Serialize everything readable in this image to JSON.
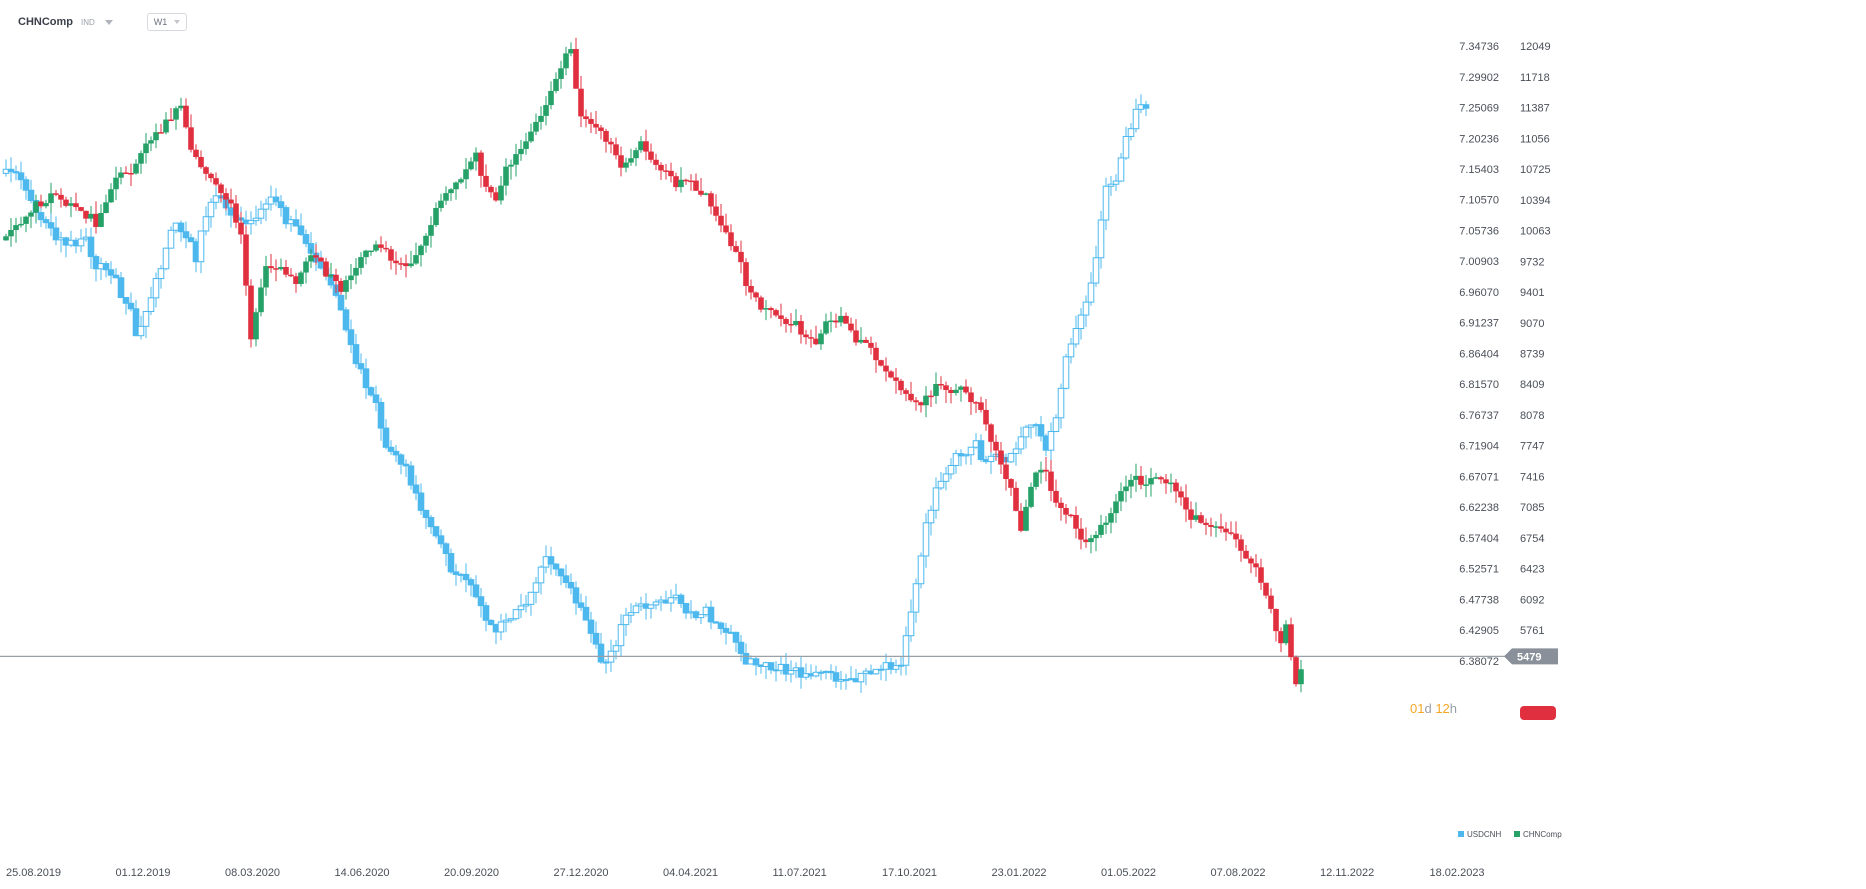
{
  "header": {
    "symbol": "CHNComp",
    "instrument_type": "IND",
    "timeframe": "W1"
  },
  "countdown": {
    "days": "01",
    "days_unit": "d",
    "hours": "12",
    "hours_unit": "h"
  },
  "colors": {
    "up": "#26a269",
    "down": "#e0303f",
    "compare_line": "#4cb8ee",
    "price_line": "#9aa0a8",
    "price_badge": "#8a9099",
    "countdown_text": "#f5a623",
    "countdown_badge": "#e0303f"
  },
  "chart_data": {
    "type": "candlestick",
    "title": "",
    "price_marker": {
      "value": 5479
    },
    "primary_axis": {
      "ticks": [
        12049,
        11718,
        11387,
        11056,
        10725,
        10394,
        10063,
        9732,
        9401,
        9070,
        8739,
        8409,
        8078,
        7747,
        7416,
        7085,
        6754,
        6423,
        6092,
        5761,
        5479
      ]
    },
    "compare_axis": {
      "ticks": [
        "7.34736",
        "7.29902",
        "7.25069",
        "7.20236",
        "7.15403",
        "7.10570",
        "7.05736",
        "7.00903",
        "6.96070",
        "6.91237",
        "6.86404",
        "6.81570",
        "6.76737",
        "6.71904",
        "6.67071",
        "6.62238",
        "6.57404",
        "6.52571",
        "6.47738",
        "6.42905",
        "6.38072"
      ]
    },
    "x_ticks": [
      "25.08.2019",
      "01.12.2019",
      "08.03.2020",
      "14.06.2020",
      "20.09.2020",
      "27.12.2020",
      "04.04.2021",
      "11.07.2021",
      "17.10.2021",
      "23.01.2022",
      "01.05.2022",
      "07.08.2022",
      "12.11.2022",
      "18.02.2023"
    ],
    "legend": [
      {
        "name": "USDCNH",
        "color": "#4cb8ee"
      },
      {
        "name": "CHNComp",
        "color": "#26a269"
      }
    ],
    "series": [
      {
        "name": "CHNComp",
        "weekly_close_path": [
          [
            0,
            10020
          ],
          [
            6,
            10350
          ],
          [
            10,
            10450
          ],
          [
            14,
            10300
          ],
          [
            18,
            10150
          ],
          [
            22,
            10650
          ],
          [
            26,
            10750
          ],
          [
            28,
            10950
          ],
          [
            31,
            11150
          ],
          [
            34,
            11350
          ],
          [
            35,
            11400
          ],
          [
            37,
            10950
          ],
          [
            39,
            10700
          ],
          [
            42,
            10600
          ],
          [
            45,
            10350
          ],
          [
            47,
            10000
          ],
          [
            49,
            8900
          ],
          [
            52,
            9650
          ],
          [
            55,
            9720
          ],
          [
            58,
            9450
          ],
          [
            61,
            9850
          ],
          [
            64,
            9600
          ],
          [
            67,
            9450
          ],
          [
            70,
            9700
          ],
          [
            74,
            9950
          ],
          [
            78,
            9700
          ],
          [
            82,
            9750
          ],
          [
            86,
            10300
          ],
          [
            90,
            10550
          ],
          [
            94,
            10850
          ],
          [
            96,
            10480
          ],
          [
            98,
            10400
          ],
          [
            100,
            10700
          ],
          [
            103,
            10900
          ],
          [
            106,
            11200
          ],
          [
            108,
            11450
          ],
          [
            110,
            11650
          ],
          [
            112,
            11950
          ],
          [
            113,
            12000
          ],
          [
            115,
            11250
          ],
          [
            117,
            11200
          ],
          [
            120,
            11050
          ],
          [
            123,
            10750
          ],
          [
            127,
            11000
          ],
          [
            130,
            10800
          ],
          [
            134,
            10580
          ],
          [
            137,
            10550
          ],
          [
            139,
            10480
          ],
          [
            141,
            10350
          ],
          [
            143,
            10100
          ],
          [
            146,
            9850
          ],
          [
            149,
            9350
          ],
          [
            152,
            9200
          ],
          [
            155,
            9100
          ],
          [
            158,
            9050
          ],
          [
            160,
            8900
          ],
          [
            162,
            8850
          ],
          [
            164,
            9050
          ],
          [
            167,
            9100
          ],
          [
            170,
            8850
          ],
          [
            172,
            8850
          ],
          [
            174,
            8700
          ],
          [
            177,
            8450
          ],
          [
            180,
            8300
          ],
          [
            183,
            8150
          ],
          [
            186,
            8400
          ],
          [
            189,
            8300
          ],
          [
            192,
            8350
          ],
          [
            195,
            8100
          ],
          [
            198,
            7650
          ],
          [
            201,
            7250
          ],
          [
            203,
            6800
          ],
          [
            206,
            7500
          ],
          [
            208,
            7450
          ],
          [
            210,
            7150
          ],
          [
            213,
            6950
          ],
          [
            216,
            6700
          ],
          [
            219,
            6850
          ],
          [
            221,
            7050
          ],
          [
            223,
            7250
          ],
          [
            225,
            7420
          ],
          [
            228,
            7350
          ],
          [
            231,
            7400
          ],
          [
            234,
            7300
          ],
          [
            237,
            7000
          ],
          [
            240,
            6850
          ],
          [
            243,
            6850
          ],
          [
            246,
            6750
          ],
          [
            249,
            6500
          ],
          [
            252,
            6150
          ],
          [
            254,
            5800
          ],
          [
            255,
            5650
          ],
          [
            256,
            5850
          ],
          [
            258,
            5150
          ],
          [
            259,
            5350
          ]
        ]
      },
      {
        "name": "USDCNH",
        "weekly_close_path": [
          [
            0,
            7.155
          ],
          [
            3,
            7.135
          ],
          [
            5,
            7.105
          ],
          [
            8,
            7.068
          ],
          [
            10,
            7.04
          ],
          [
            13,
            7.035
          ],
          [
            16,
            7.04
          ],
          [
            18,
            7.0
          ],
          [
            20,
            6.995
          ],
          [
            22,
            6.98
          ],
          [
            24,
            6.935
          ],
          [
            25,
            6.935
          ],
          [
            26,
            6.885
          ],
          [
            28,
            6.935
          ],
          [
            31,
            7.0
          ],
          [
            34,
            7.075
          ],
          [
            36,
            7.05
          ],
          [
            38,
            7.015
          ],
          [
            40,
            7.085
          ],
          [
            42,
            7.115
          ],
          [
            44,
            7.095
          ],
          [
            47,
            7.07
          ],
          [
            50,
            7.08
          ],
          [
            53,
            7.115
          ],
          [
            56,
            7.075
          ],
          [
            59,
            7.055
          ],
          [
            62,
            7.005
          ],
          [
            64,
            6.99
          ],
          [
            66,
            6.955
          ],
          [
            68,
            6.905
          ],
          [
            70,
            6.855
          ],
          [
            72,
            6.81
          ],
          [
            74,
            6.785
          ],
          [
            76,
            6.72
          ],
          [
            78,
            6.71
          ],
          [
            80,
            6.68
          ],
          [
            82,
            6.65
          ],
          [
            84,
            6.6
          ],
          [
            87,
            6.56
          ],
          [
            89,
            6.525
          ],
          [
            92,
            6.51
          ],
          [
            94,
            6.475
          ],
          [
            96,
            6.45
          ],
          [
            98,
            6.43
          ],
          [
            100,
            6.44
          ],
          [
            102,
            6.455
          ],
          [
            104,
            6.475
          ],
          [
            106,
            6.505
          ],
          [
            108,
            6.545
          ],
          [
            110,
            6.52
          ],
          [
            112,
            6.505
          ],
          [
            114,
            6.475
          ],
          [
            116,
            6.44
          ],
          [
            118,
            6.41
          ],
          [
            119,
            6.38
          ],
          [
            121,
            6.39
          ],
          [
            123,
            6.43
          ],
          [
            125,
            6.46
          ],
          [
            128,
            6.47
          ],
          [
            131,
            6.47
          ],
          [
            134,
            6.48
          ],
          [
            136,
            6.46
          ],
          [
            138,
            6.45
          ],
          [
            140,
            6.46
          ],
          [
            142,
            6.44
          ],
          [
            144,
            6.43
          ],
          [
            146,
            6.41
          ],
          [
            148,
            6.38
          ],
          [
            151,
            6.375
          ],
          [
            154,
            6.37
          ],
          [
            157,
            6.365
          ],
          [
            160,
            6.36
          ],
          [
            163,
            6.36
          ],
          [
            166,
            6.355
          ],
          [
            169,
            6.35
          ],
          [
            171,
            6.355
          ],
          [
            173,
            6.365
          ],
          [
            175,
            6.375
          ],
          [
            177,
            6.37
          ],
          [
            179,
            6.38
          ],
          [
            180,
            6.42
          ],
          [
            182,
            6.51
          ],
          [
            184,
            6.59
          ],
          [
            186,
            6.65
          ],
          [
            188,
            6.68
          ],
          [
            190,
            6.71
          ],
          [
            192,
            6.7
          ],
          [
            194,
            6.72
          ],
          [
            196,
            6.69
          ],
          [
            198,
            6.71
          ],
          [
            200,
            6.695
          ],
          [
            202,
            6.72
          ],
          [
            204,
            6.745
          ],
          [
            206,
            6.755
          ],
          [
            208,
            6.72
          ],
          [
            210,
            6.77
          ],
          [
            212,
            6.86
          ],
          [
            214,
            6.91
          ],
          [
            216,
            6.94
          ],
          [
            218,
            7.01
          ],
          [
            220,
            7.13
          ],
          [
            222,
            7.14
          ],
          [
            224,
            7.2
          ],
          [
            226,
            7.25
          ],
          [
            228,
            7.255
          ]
        ]
      }
    ]
  }
}
